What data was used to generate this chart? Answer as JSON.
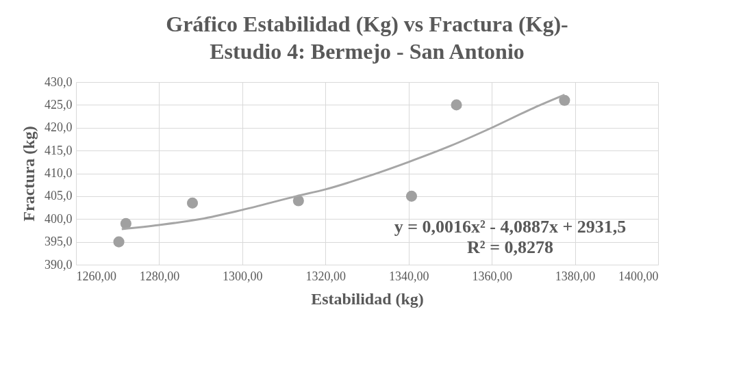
{
  "chart_data": {
    "type": "scatter",
    "title": [
      "Gráfico  Estabilidad (Kg) vs Fractura (Kg)-",
      "Estudio 4: Bermejo - San Antonio"
    ],
    "xlabel": "Estabilidad (kg)",
    "ylabel": "Fractura (kg)",
    "series": [
      {
        "marker": "circle",
        "color": "#a0a0a0",
        "x": [
          1270.3,
          1272,
          1288,
          1313.5,
          1340.7,
          1351.5,
          1377.5
        ],
        "values": [
          395,
          399,
          403.5,
          404,
          405,
          425,
          426
        ]
      },
      {
        "type": "line",
        "marker": "none",
        "color": "#a6a6a6",
        "x": [
          1271,
          1280,
          1290,
          1300,
          1313,
          1320,
          1330,
          1340,
          1350,
          1360,
          1370,
          1377.5
        ],
        "values": [
          397.8,
          398.7,
          400,
          402,
          405,
          406.5,
          409.3,
          412.5,
          416,
          420,
          424.3,
          427.2
        ]
      }
    ],
    "xlim": [
      1260,
      1400
    ],
    "ylim": [
      390,
      430
    ],
    "xticks": [
      {
        "value": 1260,
        "label": "1260,00"
      },
      {
        "value": 1280,
        "label": "1280,00"
      },
      {
        "value": 1300,
        "label": "1300,00"
      },
      {
        "value": 1320,
        "label": "1320,00"
      },
      {
        "value": 1340,
        "label": "1340,00"
      },
      {
        "value": 1360,
        "label": "1360,00"
      },
      {
        "value": 1380,
        "label": "1380,00"
      },
      {
        "value": 1400,
        "label": "1400,00"
      }
    ],
    "yticks": [
      {
        "value": 390,
        "label": "390,0"
      },
      {
        "value": 395,
        "label": "395,0"
      },
      {
        "value": 400,
        "label": "400,0"
      },
      {
        "value": 405,
        "label": "405,0"
      },
      {
        "value": 410,
        "label": "410,0"
      },
      {
        "value": 415,
        "label": "415,0"
      },
      {
        "value": 420,
        "label": "420,0"
      },
      {
        "value": 425,
        "label": "425,0"
      },
      {
        "value": 430,
        "label": "430,0"
      }
    ],
    "annotations": [
      "y = 0,0016x² - 4,0887x + 2931,5",
      "R² = 0,8278"
    ],
    "grid": true,
    "line_style": "solid"
  }
}
